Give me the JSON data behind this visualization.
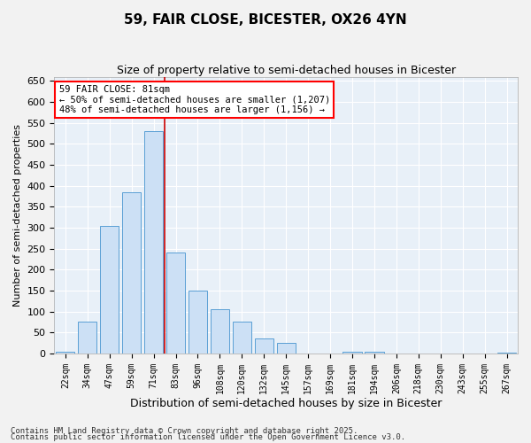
{
  "title": "59, FAIR CLOSE, BICESTER, OX26 4YN",
  "subtitle": "Size of property relative to semi-detached houses in Bicester",
  "xlabel": "Distribution of semi-detached houses by size in Bicester",
  "ylabel": "Number of semi-detached properties",
  "footnote1": "Contains HM Land Registry data © Crown copyright and database right 2025.",
  "footnote2": "Contains public sector information licensed under the Open Government Licence v3.0.",
  "bar_color": "#cce0f5",
  "bar_edge_color": "#5a9fd4",
  "background_color": "#e8f0f8",
  "grid_color": "#ffffff",
  "vline_color": "#cc0000",
  "vline_x": 4.5,
  "annotation_text": "59 FAIR CLOSE: 81sqm\n← 50% of semi-detached houses are smaller (1,207)\n48% of semi-detached houses are larger (1,156) →",
  "categories": [
    "22sqm",
    "34sqm",
    "47sqm",
    "59sqm",
    "71sqm",
    "83sqm",
    "96sqm",
    "108sqm",
    "120sqm",
    "132sqm",
    "145sqm",
    "157sqm",
    "169sqm",
    "181sqm",
    "194sqm",
    "206sqm",
    "218sqm",
    "230sqm",
    "243sqm",
    "255sqm",
    "267sqm"
  ],
  "values": [
    5,
    75,
    305,
    385,
    530,
    240,
    150,
    105,
    75,
    35,
    25,
    0,
    0,
    5,
    5,
    0,
    0,
    0,
    0,
    0,
    3
  ],
  "ylim": [
    0,
    660
  ],
  "yticks": [
    0,
    50,
    100,
    150,
    200,
    250,
    300,
    350,
    400,
    450,
    500,
    550,
    600,
    650
  ],
  "fig_width": 6.0,
  "fig_height": 5.0,
  "fig_bg": "#f2f2f2"
}
